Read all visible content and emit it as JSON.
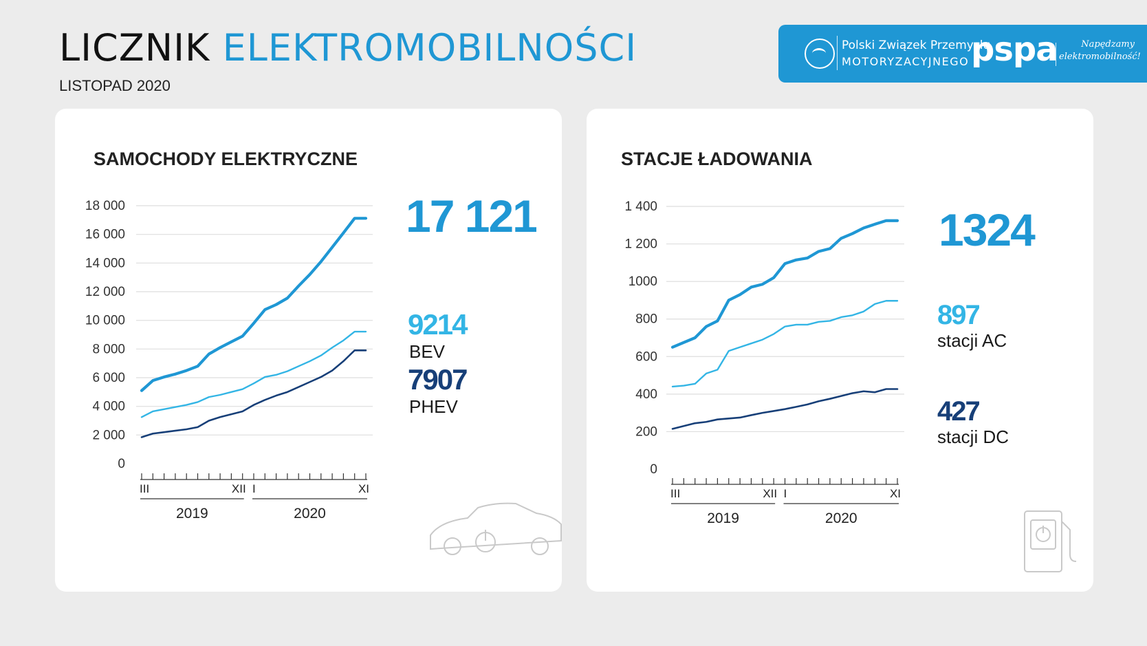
{
  "header": {
    "title_part1": "LICZNIK",
    "title_part2": "ELEKTROMOBILNOŚCI",
    "subtitle": "LISTOPAD 2020"
  },
  "logos": {
    "pzpm_line1": "Polski Związek Przemysłu",
    "pzpm_line2": "MOTORYZACYJNEGO",
    "pspa": "pspa",
    "pspa_tagline_1": "Napędzamy",
    "pspa_tagline_2": "elektromobilność!"
  },
  "colors": {
    "total": "#1f97d4",
    "light": "#33b5e5",
    "dark": "#173f78"
  },
  "chart_data": [
    {
      "type": "line",
      "title": "SAMOCHODY ELEKTRYCZNE",
      "ylim": [
        0,
        18000
      ],
      "yticks": [
        0,
        2000,
        4000,
        6000,
        8000,
        10000,
        12000,
        14000,
        16000,
        18000
      ],
      "ytick_labels": [
        "0",
        "2 000",
        "4 000",
        "6 000",
        "8 000",
        "10 000",
        "12 000",
        "14 000",
        "16 000",
        "18 000"
      ],
      "x": [
        "2019-03",
        "2019-04",
        "2019-05",
        "2019-06",
        "2019-07",
        "2019-08",
        "2019-09",
        "2019-10",
        "2019-11",
        "2019-12",
        "2020-01",
        "2020-02",
        "2020-03",
        "2020-04",
        "2020-05",
        "2020-06",
        "2020-07",
        "2020-08",
        "2020-09",
        "2020-10",
        "2020-11"
      ],
      "x_marks": [
        "III",
        "XII",
        "I",
        "XI"
      ],
      "years": [
        "2019",
        "2020"
      ],
      "grid": true,
      "series": [
        {
          "key": "total",
          "values": [
            5100,
            5800,
            6050,
            6250,
            6500,
            6800,
            7650,
            8100,
            8500,
            8900,
            9800,
            10750,
            11100,
            11550,
            12400,
            13200,
            14100,
            15100,
            16100,
            17121,
            17121
          ],
          "highlight": "17 121"
        },
        {
          "key": "bev",
          "name": "BEV",
          "values": [
            3250,
            3650,
            3800,
            3950,
            4100,
            4300,
            4650,
            4800,
            5000,
            5200,
            5600,
            6050,
            6200,
            6450,
            6800,
            7150,
            7550,
            8100,
            8600,
            9214,
            9214
          ],
          "highlight": "9214"
        },
        {
          "key": "phev",
          "name": "PHEV",
          "values": [
            1850,
            2100,
            2200,
            2300,
            2400,
            2550,
            3000,
            3250,
            3450,
            3650,
            4100,
            4450,
            4750,
            5000,
            5350,
            5700,
            6050,
            6500,
            7150,
            7907,
            7907
          ],
          "highlight": "7907"
        }
      ]
    },
    {
      "type": "line",
      "title": "STACJE ŁADOWANIA",
      "ylim": [
        0,
        1400
      ],
      "yticks": [
        0,
        200,
        400,
        600,
        800,
        1000,
        1200,
        1400
      ],
      "ytick_labels": [
        "0",
        "200",
        "400",
        "600",
        "800",
        "1000",
        "1 200",
        "1 400"
      ],
      "x": [
        "2019-03",
        "2019-04",
        "2019-05",
        "2019-06",
        "2019-07",
        "2019-08",
        "2019-09",
        "2019-10",
        "2019-11",
        "2019-12",
        "2020-01",
        "2020-02",
        "2020-03",
        "2020-04",
        "2020-05",
        "2020-06",
        "2020-07",
        "2020-08",
        "2020-09",
        "2020-10",
        "2020-11"
      ],
      "x_marks": [
        "III",
        "XII",
        "I",
        "XI"
      ],
      "years": [
        "2019",
        "2020"
      ],
      "grid": true,
      "series": [
        {
          "key": "total",
          "values": [
            650,
            675,
            700,
            760,
            790,
            900,
            930,
            970,
            985,
            1020,
            1095,
            1115,
            1125,
            1160,
            1175,
            1230,
            1255,
            1285,
            1305,
            1324,
            1324
          ],
          "highlight": "1324"
        },
        {
          "key": "ac",
          "name": "stacji AC",
          "values": [
            440,
            445,
            455,
            510,
            530,
            630,
            650,
            670,
            690,
            720,
            760,
            770,
            770,
            785,
            790,
            810,
            820,
            840,
            880,
            897,
            897
          ],
          "highlight": "897"
        },
        {
          "key": "dc",
          "name": "stacji DC",
          "values": [
            215,
            230,
            245,
            252,
            265,
            270,
            275,
            288,
            300,
            310,
            320,
            332,
            345,
            362,
            375,
            390,
            405,
            415,
            410,
            427,
            427
          ],
          "highlight": "427"
        }
      ]
    }
  ]
}
